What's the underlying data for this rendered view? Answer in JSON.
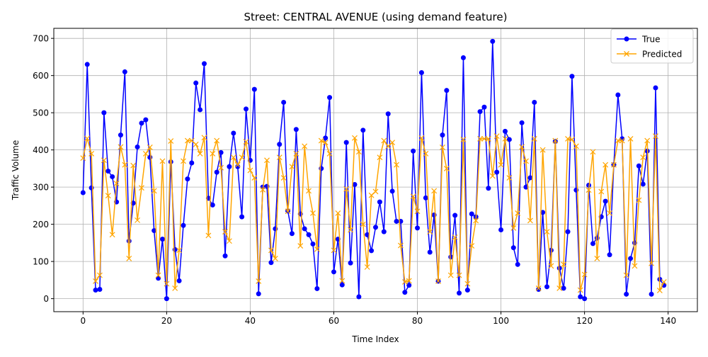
{
  "chart_data": {
    "type": "line",
    "title": "Street: CENTRAL AVENUE (using demand feature)",
    "xlabel": "Time Index",
    "ylabel": "Traffic Volume",
    "xlim": [
      -7,
      147
    ],
    "ylim": [
      -35,
      727
    ],
    "xticks": [
      0,
      20,
      40,
      60,
      80,
      100,
      120,
      140
    ],
    "yticks": [
      0,
      100,
      200,
      300,
      400,
      500,
      600,
      700
    ],
    "grid": true,
    "legend_position": "top-right",
    "x": [
      0,
      1,
      2,
      3,
      4,
      5,
      6,
      7,
      8,
      9,
      10,
      11,
      12,
      13,
      14,
      15,
      16,
      17,
      18,
      19,
      20,
      21,
      22,
      23,
      24,
      25,
      26,
      27,
      28,
      29,
      30,
      31,
      32,
      33,
      34,
      35,
      36,
      37,
      38,
      39,
      40,
      41,
      42,
      43,
      44,
      45,
      46,
      47,
      48,
      49,
      50,
      51,
      52,
      53,
      54,
      55,
      56,
      57,
      58,
      59,
      60,
      61,
      62,
      63,
      64,
      65,
      66,
      67,
      68,
      69,
      70,
      71,
      72,
      73,
      74,
      75,
      76,
      77,
      78,
      79,
      80,
      81,
      82,
      83,
      84,
      85,
      86,
      87,
      88,
      89,
      90,
      91,
      92,
      93,
      94,
      95,
      96,
      97,
      98,
      99,
      100,
      101,
      102,
      103,
      104,
      105,
      106,
      107,
      108,
      109,
      110,
      111,
      112,
      113,
      114,
      115,
      116,
      117,
      118,
      119,
      120,
      121,
      122,
      123,
      124,
      125,
      126,
      127,
      128,
      129,
      130,
      131,
      132,
      133,
      134,
      135,
      136,
      137,
      138,
      139
    ],
    "series": [
      {
        "name": "True",
        "color": "#0000ff",
        "marker": "circle",
        "values": [
          285,
          630,
          298,
          23,
          25,
          500,
          343,
          328,
          260,
          440,
          610,
          155,
          257,
          408,
          472,
          481,
          380,
          183,
          55,
          160,
          0,
          368,
          132,
          48,
          197,
          322,
          365,
          580,
          508,
          632,
          270,
          252,
          340,
          393,
          115,
          355,
          445,
          355,
          220,
          510,
          372,
          563,
          13,
          300,
          302,
          97,
          188,
          415,
          528,
          236,
          175,
          455,
          228,
          188,
          172,
          147,
          27,
          350,
          432,
          541,
          72,
          160,
          37,
          420,
          96,
          307,
          5,
          453,
          172,
          129,
          192,
          260,
          180,
          497,
          289,
          208,
          208,
          17,
          36,
          397,
          190,
          608,
          271,
          125,
          225,
          47,
          440,
          560,
          112,
          224,
          15,
          648,
          23,
          228,
          220,
          503,
          515,
          297,
          692,
          340,
          185,
          450,
          428,
          137,
          92,
          473,
          300,
          325,
          528,
          25,
          232,
          32,
          130,
          423,
          82,
          28,
          180,
          598,
          292,
          5,
          0,
          305,
          148,
          163,
          220,
          262,
          118,
          360,
          548,
          430,
          12,
          108,
          150,
          357,
          308,
          397,
          12,
          567,
          52,
          36
        ]
      },
      {
        "name": "Predicted",
        "color": "#ffa500",
        "marker": "x",
        "values": [
          378,
          431,
          390,
          47,
          63,
          372,
          277,
          172,
          310,
          408,
          360,
          108,
          358,
          211,
          298,
          390,
          407,
          290,
          63,
          370,
          40,
          424,
          28,
          130,
          370,
          425,
          425,
          415,
          390,
          433,
          170,
          390,
          425,
          352,
          180,
          155,
          380,
          360,
          380,
          422,
          345,
          325,
          47,
          293,
          372,
          130,
          108,
          380,
          325,
          235,
          355,
          390,
          142,
          410,
          290,
          230,
          133,
          425,
          420,
          390,
          130,
          230,
          48,
          295,
          185,
          432,
          395,
          200,
          85,
          278,
          288,
          380,
          425,
          410,
          420,
          360,
          143,
          45,
          48,
          275,
          235,
          432,
          390,
          180,
          290,
          47,
          407,
          350,
          63,
          165,
          63,
          428,
          40,
          142,
          210,
          430,
          430,
          430,
          330,
          437,
          360,
          430,
          325,
          190,
          230,
          408,
          370,
          210,
          430,
          28,
          400,
          180,
          88,
          425,
          28,
          92,
          430,
          428,
          410,
          23,
          65,
          292,
          395,
          108,
          288,
          360,
          230,
          360,
          425,
          425,
          63,
          430,
          88,
          265,
          380,
          425,
          95,
          437,
          22,
          45
        ]
      }
    ]
  }
}
